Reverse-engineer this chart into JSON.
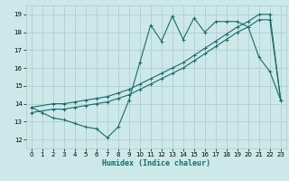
{
  "xlabel": "Humidex (Indice chaleur)",
  "xlim": [
    -0.5,
    23.5
  ],
  "ylim": [
    11.5,
    19.5
  ],
  "yticks": [
    12,
    13,
    14,
    15,
    16,
    17,
    18,
    19
  ],
  "xticks": [
    0,
    1,
    2,
    3,
    4,
    5,
    6,
    7,
    8,
    9,
    10,
    11,
    12,
    13,
    14,
    15,
    16,
    17,
    18,
    19,
    20,
    21,
    22,
    23
  ],
  "bg_color": "#cce8e8",
  "grid_color": "#aacccc",
  "line_color": "#1a6b6b",
  "line1_x": [
    0,
    1,
    2,
    3,
    4,
    5,
    6,
    7,
    8,
    9,
    10,
    11,
    12,
    13,
    14,
    15,
    16,
    17,
    18,
    19,
    20,
    21,
    22,
    23
  ],
  "line1_y": [
    13.8,
    13.5,
    13.2,
    13.1,
    12.9,
    12.7,
    12.6,
    12.1,
    12.7,
    14.2,
    16.3,
    18.4,
    17.5,
    18.9,
    17.6,
    18.8,
    18.0,
    18.6,
    18.6,
    18.6,
    18.3,
    16.6,
    15.8,
    14.2
  ],
  "line2_x": [
    0,
    2,
    3,
    4,
    5,
    6,
    7,
    8,
    9,
    10,
    11,
    12,
    13,
    14,
    15,
    16,
    17,
    18,
    19,
    20,
    21,
    22,
    23
  ],
  "line2_y": [
    13.8,
    14.0,
    14.0,
    14.1,
    14.2,
    14.3,
    14.4,
    14.6,
    14.8,
    15.1,
    15.4,
    15.7,
    16.0,
    16.3,
    16.7,
    17.1,
    17.5,
    17.9,
    18.3,
    18.6,
    19.0,
    19.0,
    14.2
  ],
  "line3_x": [
    0,
    2,
    3,
    4,
    5,
    6,
    7,
    8,
    9,
    10,
    11,
    12,
    13,
    14,
    15,
    16,
    17,
    18,
    19,
    20,
    21,
    22,
    23
  ],
  "line3_y": [
    13.5,
    13.7,
    13.7,
    13.8,
    13.9,
    14.0,
    14.1,
    14.3,
    14.5,
    14.8,
    15.1,
    15.4,
    15.7,
    16.0,
    16.4,
    16.8,
    17.2,
    17.6,
    18.0,
    18.3,
    18.7,
    18.7,
    14.2
  ]
}
